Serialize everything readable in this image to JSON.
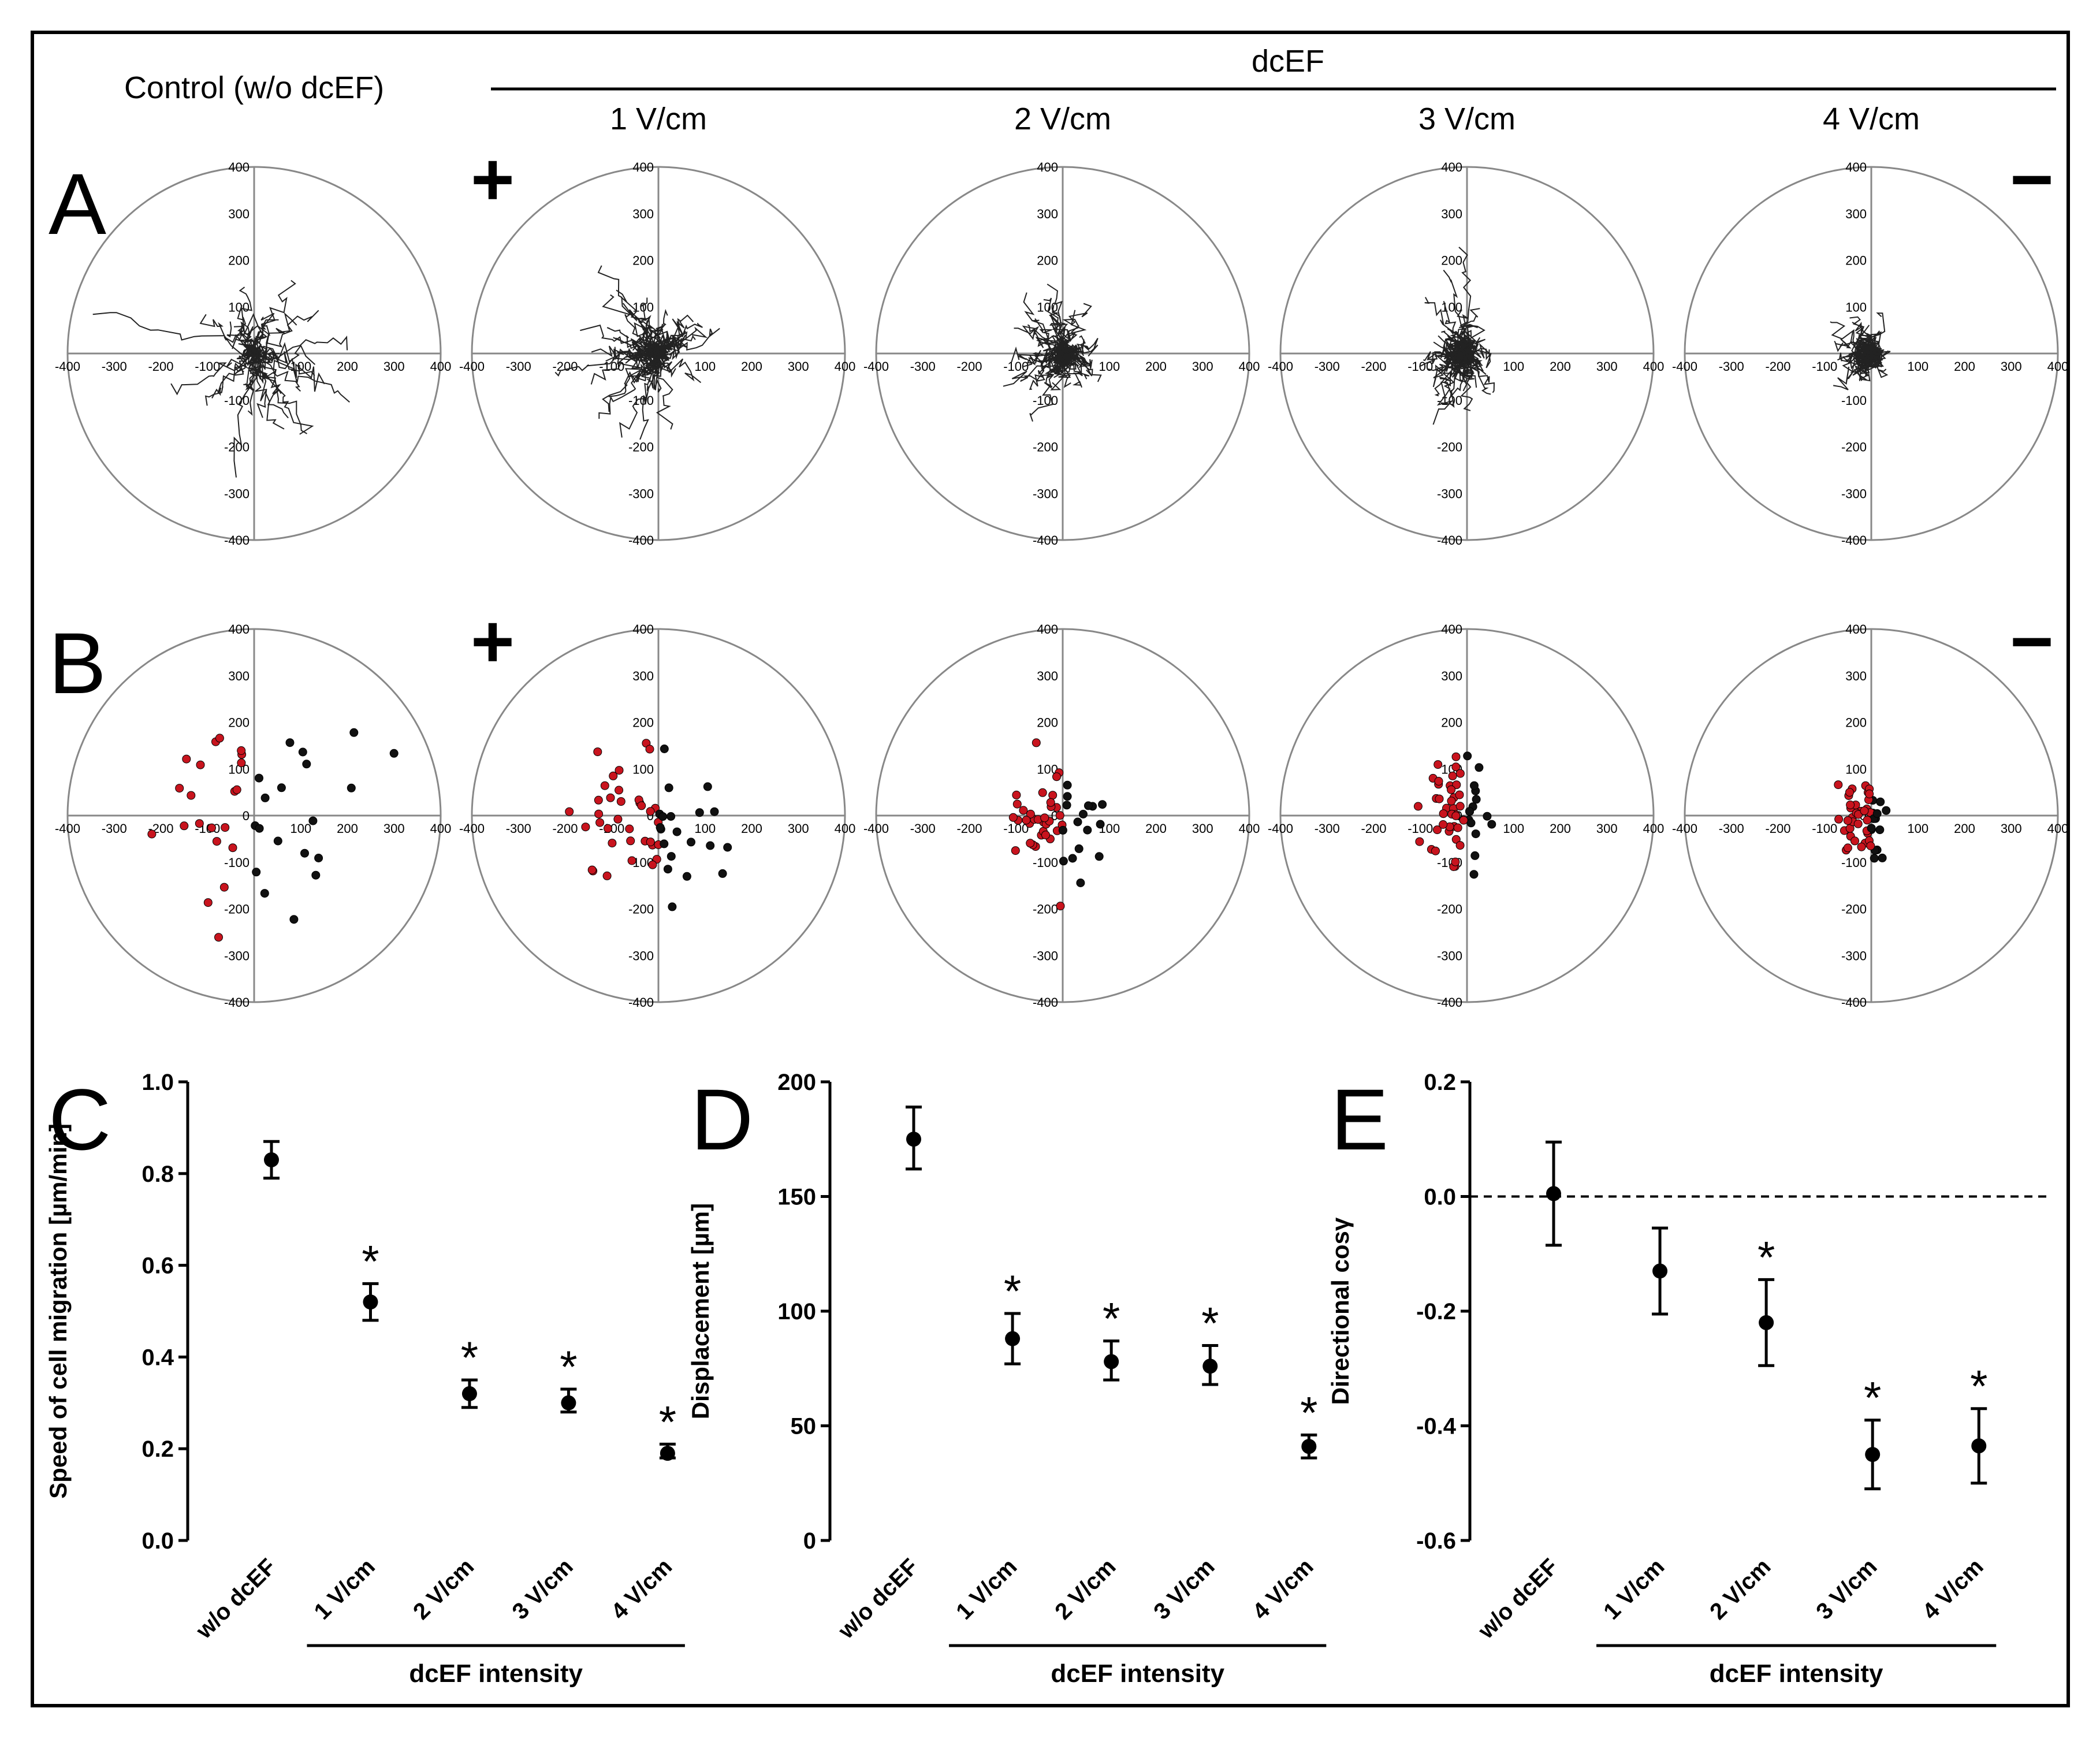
{
  "header": {
    "control_label": "Control (w/o dcEF)",
    "dcef_label": "dcEF",
    "intensity_labels": [
      "1 V/cm",
      "2 V/cm",
      "3 V/cm",
      "4 V/cm"
    ],
    "plus_sign": "+",
    "minus_sign": "−"
  },
  "panel_letters": [
    "A",
    "B",
    "C",
    "D",
    "E"
  ],
  "polar_ticks": [
    "-400",
    "-300",
    "-200",
    "-100",
    "100",
    "200",
    "300",
    "400"
  ],
  "polar_ticks_y": [
    "400",
    "300",
    "200",
    "100",
    "0",
    "-100",
    "-200",
    "-300",
    "-400"
  ],
  "condition_spread": [
    {
      "x": 110,
      "y": 80
    },
    {
      "x": 70,
      "y": 65
    },
    {
      "x": 45,
      "y": 55
    },
    {
      "x": 30,
      "y": 55
    },
    {
      "x": 25,
      "y": 35
    }
  ],
  "condition_bias_x": [
    0,
    -25,
    -15,
    -25,
    -20
  ],
  "cell_counts": [
    40,
    55,
    50,
    55,
    50
  ],
  "colors": {
    "red_cell": "#c8141e",
    "black_cell": "#111111",
    "line": "#000000",
    "axis": "#888888"
  },
  "chart_data": [
    {
      "type": "scatter",
      "panel": "C",
      "title": "",
      "ylabel": "Speed of cell migration [µm/min]",
      "xlabel": "dcEF intensity",
      "ylim": [
        0.0,
        1.0
      ],
      "yticks": [
        "0.0",
        "0.2",
        "0.4",
        "0.6",
        "0.8",
        "1.0"
      ],
      "ytick_values": [
        0.0,
        0.2,
        0.4,
        0.6,
        0.8,
        1.0
      ],
      "categories": [
        "w/o dcEF",
        "1 V/cm",
        "2 V/cm",
        "3 V/cm",
        "4 V/cm"
      ],
      "values": [
        0.83,
        0.52,
        0.32,
        0.3,
        0.19
      ],
      "err_high": [
        0.87,
        0.56,
        0.35,
        0.33,
        0.21
      ],
      "err_low": [
        0.79,
        0.48,
        0.29,
        0.28,
        0.18
      ],
      "significant": [
        false,
        true,
        true,
        true,
        true
      ],
      "star": "*"
    },
    {
      "type": "scatter",
      "panel": "D",
      "title": "",
      "ylabel": "Displacement [µm]",
      "xlabel": "dcEF intensity",
      "ylim": [
        0,
        200
      ],
      "yticks": [
        "0",
        "50",
        "100",
        "150",
        "200"
      ],
      "ytick_values": [
        0,
        50,
        100,
        150,
        200
      ],
      "categories": [
        "w/o dcEF",
        "1 V/cm",
        "2 V/cm",
        "3 V/cm",
        "4 V/cm"
      ],
      "values": [
        175,
        88,
        78,
        76,
        41
      ],
      "err_high": [
        189,
        99,
        87,
        85,
        46
      ],
      "err_low": [
        162,
        77,
        70,
        68,
        36
      ],
      "significant": [
        false,
        true,
        true,
        true,
        true
      ],
      "star": "*"
    },
    {
      "type": "scatter",
      "panel": "E",
      "title": "",
      "ylabel": "Directional cosγ",
      "xlabel": "dcEF intensity",
      "ylim": [
        -0.6,
        0.2
      ],
      "yticks": [
        "-0.6",
        "-0.4",
        "-0.2",
        "0.0",
        "0.2"
      ],
      "ytick_values": [
        -0.6,
        -0.4,
        -0.2,
        0.0,
        0.2
      ],
      "categories": [
        "w/o dcEF",
        "1 V/cm",
        "2 V/cm",
        "3 V/cm",
        "4 V/cm"
      ],
      "values": [
        0.005,
        -0.13,
        -0.22,
        -0.45,
        -0.435
      ],
      "err_high": [
        0.095,
        -0.055,
        -0.145,
        -0.39,
        -0.37
      ],
      "err_low": [
        -0.085,
        -0.205,
        -0.295,
        -0.51,
        -0.5
      ],
      "significant": [
        false,
        false,
        true,
        true,
        true
      ],
      "star": "*",
      "reference_line": 0.0
    }
  ]
}
